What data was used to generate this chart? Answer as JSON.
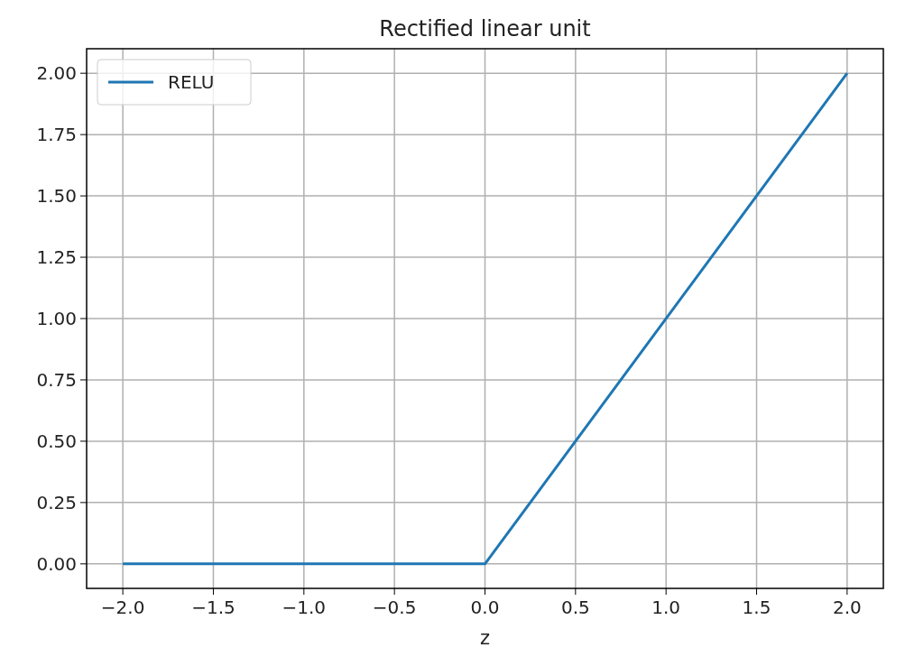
{
  "chart_data": {
    "type": "line",
    "title": "Rectified linear unit",
    "xlabel": "z",
    "x": [
      -2,
      0,
      2
    ],
    "series": [
      {
        "name": "RELU",
        "color": "#1f77b4",
        "values": [
          0,
          0,
          2
        ]
      }
    ],
    "xlim": [
      -2.2,
      2.2
    ],
    "xticks": [
      {
        "value": -2,
        "label": "−2.0"
      },
      {
        "value": -1.5,
        "label": "−1.5"
      },
      {
        "value": -1,
        "label": "−1.0"
      },
      {
        "value": -0.5,
        "label": "−0.5"
      },
      {
        "value": 0,
        "label": "0.0"
      },
      {
        "value": 0.5,
        "label": "0.5"
      },
      {
        "value": 1,
        "label": "1.0"
      },
      {
        "value": 1.5,
        "label": "1.5"
      },
      {
        "value": 2,
        "label": "2.0"
      }
    ],
    "ylim": [
      -0.1,
      2.1
    ],
    "yticks": [
      {
        "value": 0,
        "label": "0.00"
      },
      {
        "value": 0.25,
        "label": "0.25"
      },
      {
        "value": 0.5,
        "label": "0.50"
      },
      {
        "value": 0.75,
        "label": "0.75"
      },
      {
        "value": 1,
        "label": "1.00"
      },
      {
        "value": 1.25,
        "label": "1.25"
      },
      {
        "value": 1.5,
        "label": "1.50"
      },
      {
        "value": 1.75,
        "label": "1.75"
      },
      {
        "value": 2,
        "label": "2.00"
      }
    ],
    "grid": true,
    "legend": "top left",
    "marker": "none",
    "line_style": "solid"
  }
}
